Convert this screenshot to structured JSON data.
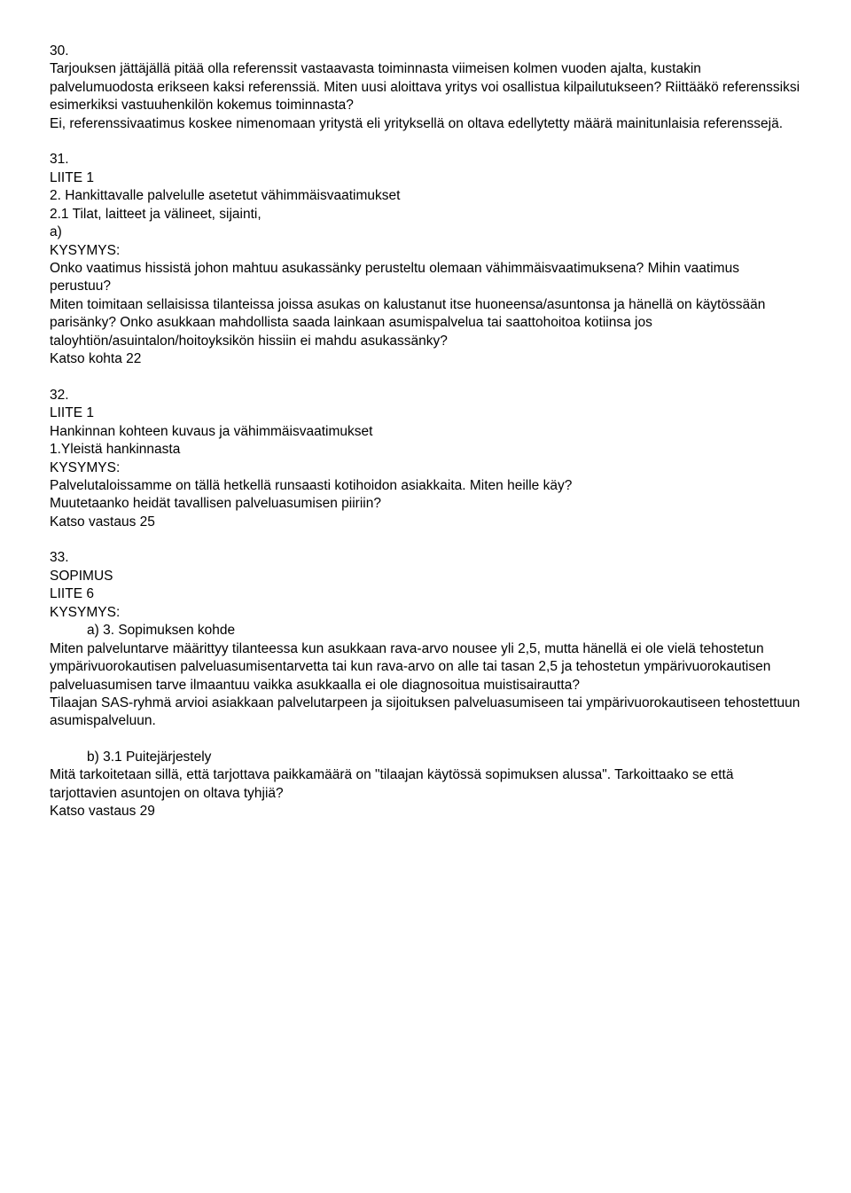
{
  "sections": [
    {
      "num": "30.",
      "lines": [
        "Tarjouksen jättäjällä pitää olla referenssit vastaavasta toiminnasta viimeisen kolmen vuoden ajalta, kustakin palvelumuodosta erikseen kaksi referenssiä. Miten uusi aloittava yritys voi osallistua kilpailutukseen? Riittääkö referenssiksi esimerkiksi vastuuhenkilön kokemus toiminnasta?",
        "Ei, referenssivaatimus koskee nimenomaan yritystä eli yrityksellä on oltava edellytetty määrä mainitunlaisia referenssejä."
      ]
    },
    {
      "num": "31.",
      "lines": [
        "LIITE 1",
        "2. Hankittavalle palvelulle asetetut vähimmäisvaatimukset",
        "2.1 Tilat, laitteet ja välineet, sijainti,",
        "a)",
        "KYSYMYS:",
        "Onko vaatimus hissistä johon mahtuu asukassänky perusteltu olemaan vähimmäisvaatimuksena? Mihin vaatimus perustuu?",
        "Miten toimitaan sellaisissa tilanteissa joissa asukas on kalustanut itse huoneensa/asuntonsa ja hänellä on käytössään parisänky? Onko asukkaan mahdollista saada lainkaan asumispalvelua tai saattohoitoa kotiinsa jos taloyhtiön/asuintalon/hoitoyksikön hissiin ei mahdu asukassänky?",
        "Katso kohta 22"
      ]
    },
    {
      "num": "32.",
      "lines": [
        "LIITE 1",
        "Hankinnan kohteen kuvaus ja vähimmäisvaatimukset",
        "1.Yleistä hankinnasta",
        "KYSYMYS:",
        "Palvelutaloissamme on tällä hetkellä runsaasti kotihoidon asiakkaita. Miten heille käy?",
        "Muutetaanko heidät tavallisen palveluasumisen piiriin?",
        "Katso vastaus 25"
      ]
    },
    {
      "num": "33.",
      "lines": [
        "SOPIMUS",
        "LIITE 6",
        "KYSYMYS:"
      ],
      "sub_a_label": "a)  3. Sopimuksen kohde",
      "sub_a_body": [
        "Miten palveluntarve määrittyy tilanteessa kun asukkaan rava-arvo nousee yli 2,5, mutta hänellä ei ole vielä tehostetun ympärivuorokautisen palveluasumisentarvetta tai kun rava-arvo on alle tai tasan 2,5 ja tehostetun ympärivuorokautisen palveluasumisen tarve ilmaantuu vaikka asukkaalla ei ole diagnosoitua muistisairautta?",
        "Tilaajan SAS-ryhmä arvioi asiakkaan palvelutarpeen ja sijoituksen palveluasumiseen tai ympärivuorokautiseen tehostettuun asumispalveluun."
      ],
      "sub_b_label": "b)  3.1 Puitejärjestely",
      "sub_b_body": [
        "Mitä tarkoitetaan sillä, että tarjottava paikkamäärä on \"tilaajan käytössä sopimuksen alussa\". Tarkoittaako se että tarjottavien asuntojen on oltava tyhjiä?",
        "Katso vastaus 29"
      ]
    }
  ]
}
